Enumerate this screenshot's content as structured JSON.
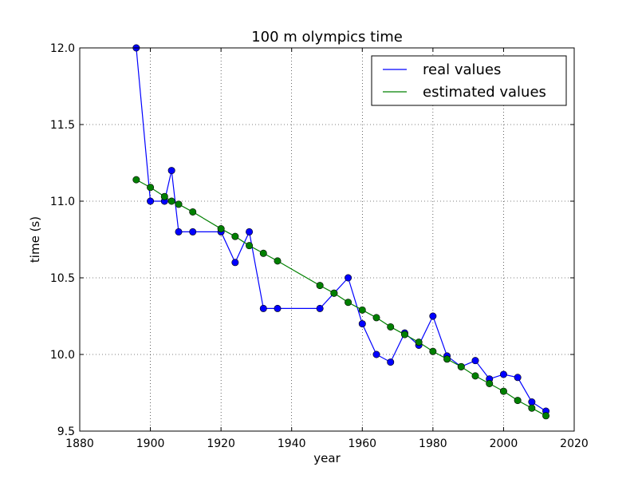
{
  "chart_data": {
    "type": "line",
    "title": "100 m olympics time",
    "xlabel": "year",
    "ylabel": "time (s)",
    "xlim": [
      1880,
      2020
    ],
    "ylim": [
      9.5,
      12.0
    ],
    "xticks": [
      "1880",
      "1900",
      "1920",
      "1940",
      "1960",
      "1980",
      "2000",
      "2020"
    ],
    "yticks": [
      "9.5",
      "10.0",
      "10.5",
      "11.0",
      "11.5",
      "12.0"
    ],
    "grid": true,
    "legend_position": "top-right",
    "series": [
      {
        "name": "real values",
        "color": "#0000ff",
        "marker": "circle",
        "x": [
          1896,
          1900,
          1904,
          1906,
          1908,
          1912,
          1920,
          1924,
          1928,
          1932,
          1936,
          1948,
          1952,
          1956,
          1960,
          1964,
          1968,
          1972,
          1976,
          1980,
          1984,
          1988,
          1992,
          1996,
          2000,
          2004,
          2008,
          2012
        ],
        "y": [
          12.0,
          11.0,
          11.0,
          11.2,
          10.8,
          10.8,
          10.8,
          10.6,
          10.8,
          10.3,
          10.3,
          10.3,
          10.4,
          10.5,
          10.2,
          10.0,
          9.95,
          10.14,
          10.06,
          10.25,
          9.99,
          9.92,
          9.96,
          9.84,
          9.87,
          9.85,
          9.69,
          9.63
        ]
      },
      {
        "name": "estimated values",
        "color": "#008000",
        "marker": "circle",
        "x": [
          1896,
          1900,
          1904,
          1906,
          1908,
          1912,
          1920,
          1924,
          1928,
          1932,
          1936,
          1948,
          1952,
          1956,
          1960,
          1964,
          1968,
          1972,
          1976,
          1980,
          1984,
          1988,
          1992,
          1996,
          2000,
          2004,
          2008,
          2012
        ],
        "y": [
          11.14,
          11.09,
          11.03,
          11.0,
          10.98,
          10.93,
          10.82,
          10.77,
          10.71,
          10.66,
          10.61,
          10.45,
          10.4,
          10.34,
          10.29,
          10.24,
          10.18,
          10.13,
          10.08,
          10.02,
          9.97,
          9.92,
          9.86,
          9.81,
          9.76,
          9.7,
          9.65,
          9.6
        ]
      }
    ]
  }
}
